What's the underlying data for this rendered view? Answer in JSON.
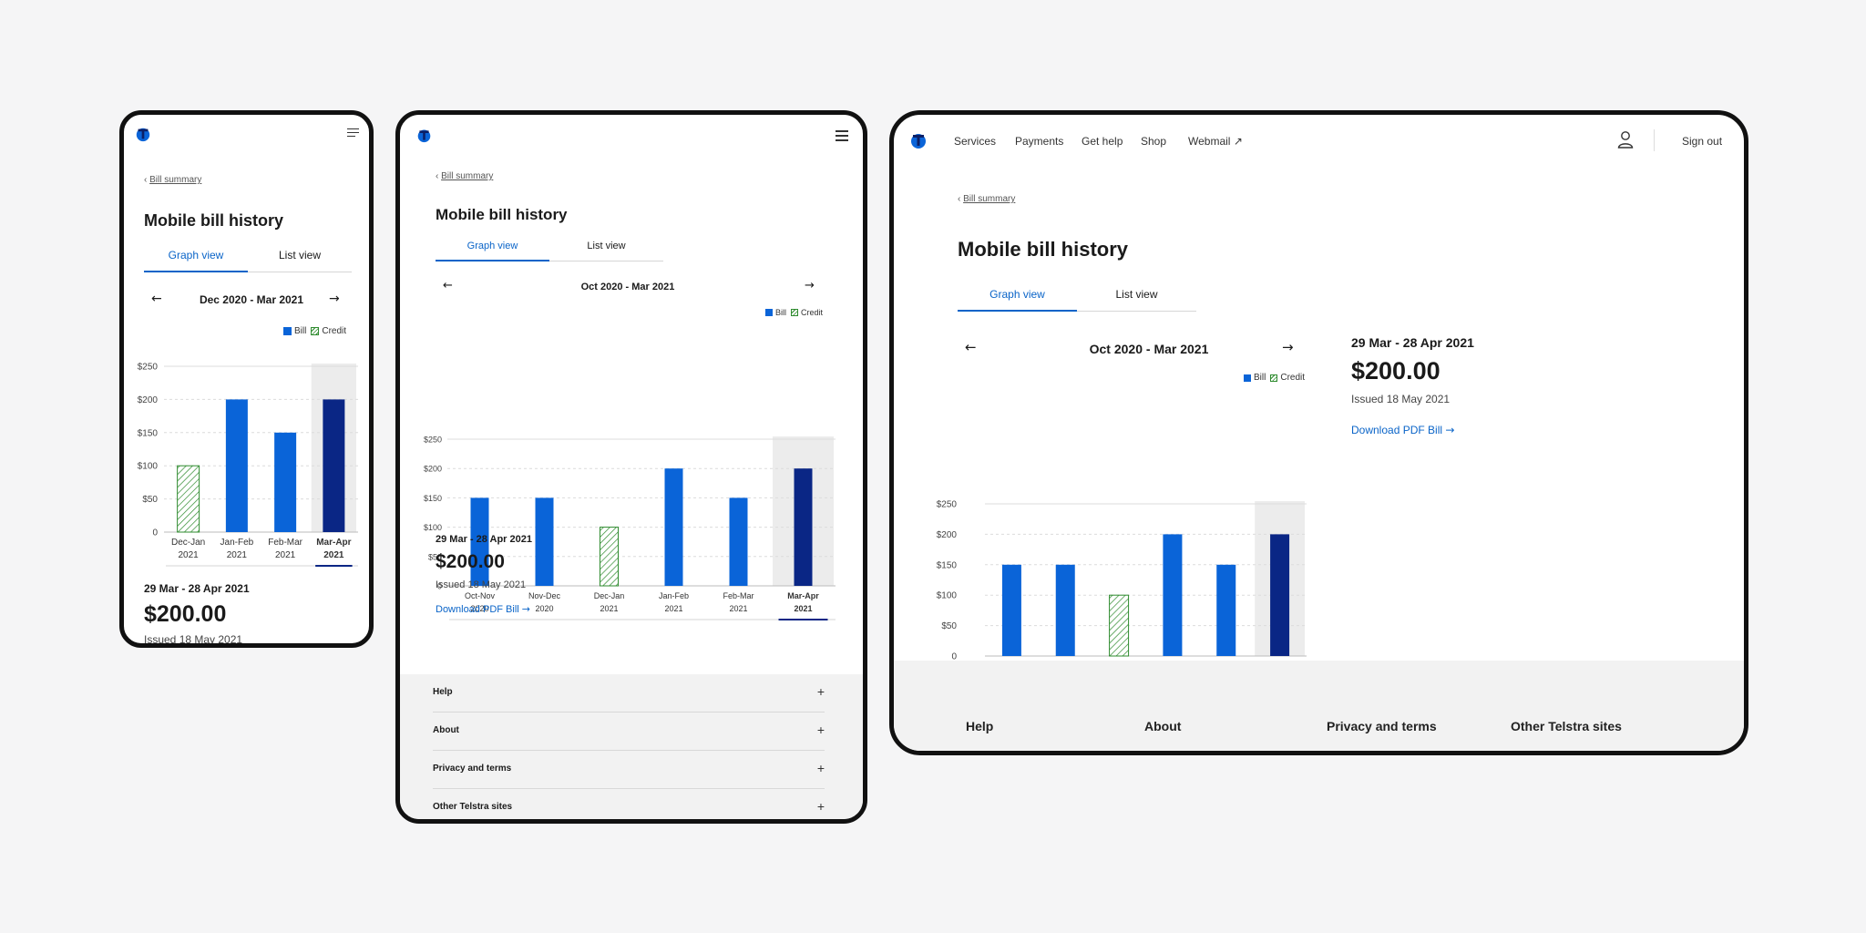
{
  "brand": {
    "accent": "#0a64c8",
    "bill_color": "#0a64d8",
    "bill_selected_color": "#0a2685",
    "credit_color": "#2e8b2e"
  },
  "mobile": {
    "breadcrumb": "Bill summary",
    "page_title": "Mobile bill history",
    "tabs": [
      {
        "label": "Graph view",
        "active": true
      },
      {
        "label": "List view",
        "active": false
      }
    ],
    "range_label": "Dec 2020 - Mar 2021",
    "legend": {
      "bill": "Bill",
      "credit": "Credit"
    },
    "period": "29 Mar - 28 Apr 2021",
    "amount": "$200.00",
    "issued": "Issued 18 May 2021"
  },
  "tablet": {
    "breadcrumb": "Bill summary",
    "page_title": "Mobile bill history",
    "tabs": [
      {
        "label": "Graph view",
        "active": true
      },
      {
        "label": "List view",
        "active": false
      }
    ],
    "range_label": "Oct 2020 - Mar 2021",
    "legend": {
      "bill": "Bill",
      "credit": "Credit"
    },
    "period": "29 Mar - 28 Apr 2021",
    "amount": "$200.00",
    "issued": "Issued 18 May 2021",
    "download_label": "Download PDF Bill",
    "footer_items": [
      "Help",
      "About",
      "Privacy and terms",
      "Other Telstra sites"
    ]
  },
  "desktop": {
    "nav": [
      "Services",
      "Payments",
      "Get help",
      "Shop",
      "Webmail"
    ],
    "sign_out": "Sign out",
    "breadcrumb": "Bill summary",
    "page_title": "Mobile bill history",
    "tabs": [
      {
        "label": "Graph view",
        "active": true
      },
      {
        "label": "List view",
        "active": false
      }
    ],
    "range_label": "Oct 2020 - Mar 2021",
    "legend": {
      "bill": "Bill",
      "credit": "Credit"
    },
    "period": "29 Mar - 28 Apr 2021",
    "amount": "$200.00",
    "issued": "Issued 18 May 2021",
    "download_label": "Download PDF Bill",
    "footer_items": [
      "Help",
      "About",
      "Privacy and terms",
      "Other Telstra sites"
    ]
  },
  "chart_data": [
    {
      "type": "bar",
      "categories": [
        [
          "Dec-Jan",
          "2021"
        ],
        [
          "Jan-Feb",
          "2021"
        ],
        [
          "Feb-Mar",
          "2021"
        ],
        [
          "Mar-Apr",
          "2021"
        ]
      ],
      "values": [
        100,
        200,
        150,
        200
      ],
      "kinds": [
        "credit",
        "bill",
        "bill",
        "bill"
      ],
      "selected_index": 3,
      "y_ticks": [
        "$250",
        "$200",
        "$150",
        "$100",
        "$50",
        "0"
      ],
      "ylim": [
        0,
        250
      ],
      "legend": [
        "Bill",
        "Credit"
      ],
      "legend_position": "top-right"
    },
    {
      "type": "bar",
      "categories": [
        [
          "Oct-Nov",
          "2020"
        ],
        [
          "Nov-Dec",
          "2020"
        ],
        [
          "Dec-Jan",
          "2021"
        ],
        [
          "Jan-Feb",
          "2021"
        ],
        [
          "Feb-Mar",
          "2021"
        ],
        [
          "Mar-Apr",
          "2021"
        ]
      ],
      "values": [
        150,
        150,
        100,
        200,
        150,
        200
      ],
      "kinds": [
        "bill",
        "bill",
        "credit",
        "bill",
        "bill",
        "bill"
      ],
      "selected_index": 5,
      "y_ticks": [
        "$250",
        "$200",
        "$150",
        "$100",
        "$50",
        "0"
      ],
      "ylim": [
        0,
        250
      ],
      "legend": [
        "Bill",
        "Credit"
      ],
      "legend_position": "top-right"
    },
    {
      "type": "bar",
      "categories": [
        [
          "Oct-Nov",
          "2020"
        ],
        [
          "Nov-Dec",
          "2020"
        ],
        [
          "Dec-Jan",
          "2021"
        ],
        [
          "Jan-Feb",
          "2021"
        ],
        [
          "Feb-Mar",
          "2021"
        ],
        [
          "Mar-Apr",
          "2021"
        ]
      ],
      "values": [
        150,
        150,
        100,
        200,
        150,
        200
      ],
      "kinds": [
        "bill",
        "bill",
        "credit",
        "bill",
        "bill",
        "bill"
      ],
      "selected_index": 5,
      "y_ticks": [
        "$250",
        "$200",
        "$150",
        "$100",
        "$50",
        "0"
      ],
      "ylim": [
        0,
        250
      ],
      "legend": [
        "Bill",
        "Credit"
      ],
      "legend_position": "top-right"
    }
  ]
}
